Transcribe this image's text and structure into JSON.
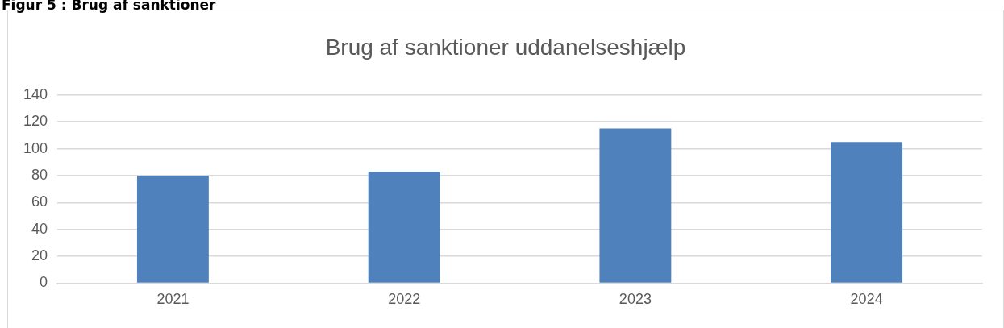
{
  "chart_data": {
    "type": "bar",
    "title": "Brug af sanktioner uddanelseshjælp",
    "annotations": [
      "Figur 5 : Brug af sanktioner"
    ],
    "categories": [
      "2021",
      "2022",
      "2023",
      "2024"
    ],
    "values": [
      80,
      83,
      115,
      105
    ],
    "color": "#4f81bd",
    "ylim": [
      0,
      140
    ],
    "yticks": [
      0,
      20,
      40,
      60,
      80,
      100,
      120,
      140
    ],
    "grid": "y",
    "legend": false
  }
}
